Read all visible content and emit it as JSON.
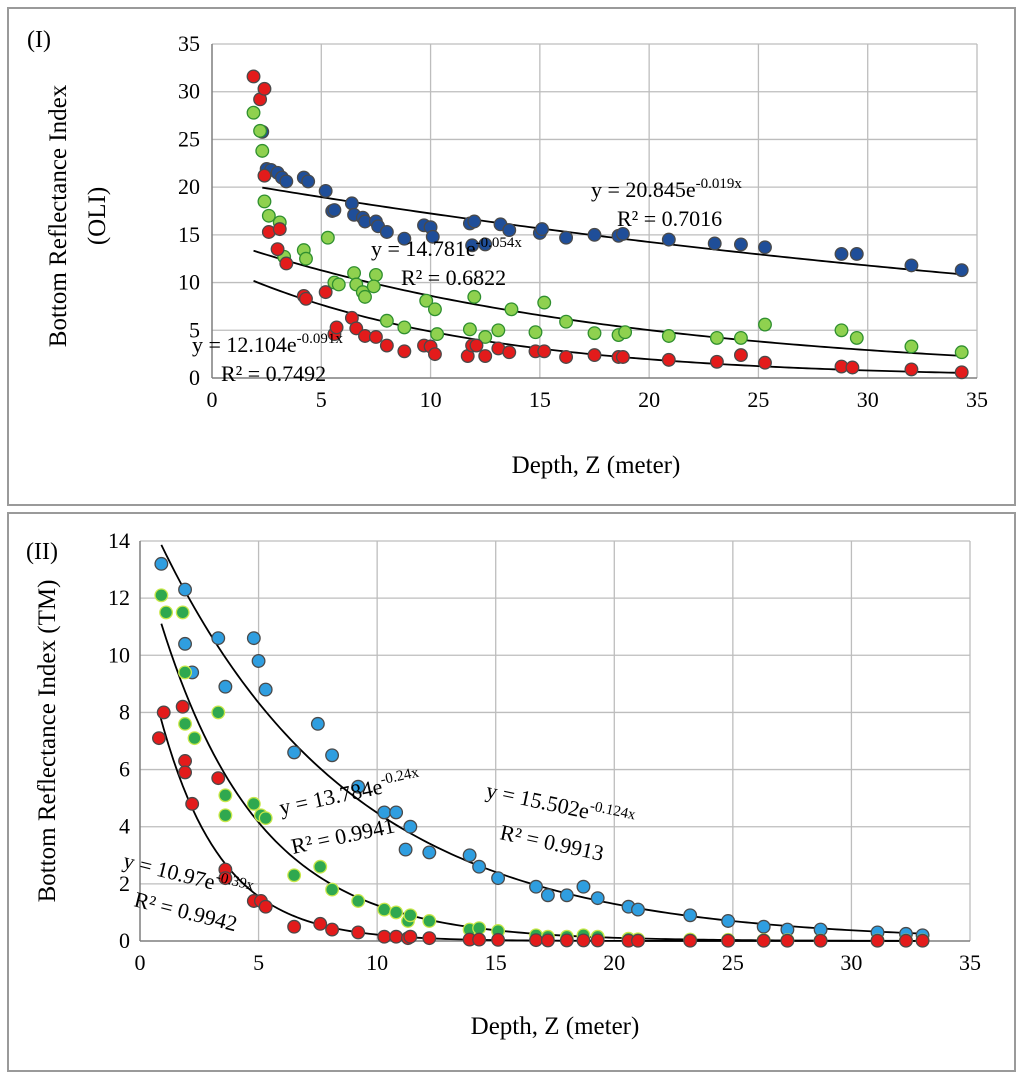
{
  "chart_data": [
    {
      "type": "scatter",
      "panel_label": "(I)",
      "xlabel": "Depth, Z (meter)",
      "ylabel": [
        "Bottom Reflectance Index",
        "(OLI)"
      ],
      "xlim": [
        0,
        35
      ],
      "ylim": [
        0,
        35
      ],
      "xticks": [
        "0",
        "5",
        "10",
        "15",
        "20",
        "25",
        "30",
        "35"
      ],
      "yticks": [
        "0",
        "5",
        "10",
        "15",
        "20",
        "25",
        "30",
        "35"
      ],
      "grid": true,
      "series": [
        {
          "name": "blue",
          "color": "#1f4e99",
          "fit": {
            "a": 20.845,
            "b": -0.019,
            "text": "y = 20.845e",
            "exp": "-0.019x",
            "r2": "R² = 0.7016"
          },
          "points": [
            [
              2.3,
              25.8
            ],
            [
              2.5,
              21.9
            ],
            [
              2.7,
              21.8
            ],
            [
              3.0,
              21.5
            ],
            [
              3.2,
              21.0
            ],
            [
              3.4,
              20.6
            ],
            [
              4.2,
              21.0
            ],
            [
              4.4,
              20.6
            ],
            [
              5.2,
              19.6
            ],
            [
              5.5,
              17.5
            ],
            [
              5.6,
              17.6
            ],
            [
              6.4,
              18.3
            ],
            [
              6.5,
              17.1
            ],
            [
              6.9,
              16.8
            ],
            [
              7.0,
              16.4
            ],
            [
              7.5,
              16.4
            ],
            [
              7.6,
              15.9
            ],
            [
              8.0,
              15.3
            ],
            [
              8.8,
              14.6
            ],
            [
              9.7,
              16.0
            ],
            [
              10.0,
              15.8
            ],
            [
              10.1,
              14.8
            ],
            [
              11.8,
              16.2
            ],
            [
              12.0,
              16.4
            ],
            [
              11.9,
              13.9
            ],
            [
              12.5,
              14.0
            ],
            [
              13.2,
              16.1
            ],
            [
              13.6,
              15.5
            ],
            [
              15.0,
              15.2
            ],
            [
              15.1,
              15.6
            ],
            [
              16.2,
              14.7
            ],
            [
              17.5,
              15.0
            ],
            [
              18.6,
              14.9
            ],
            [
              18.8,
              15.1
            ],
            [
              20.9,
              14.5
            ],
            [
              23.0,
              14.1
            ],
            [
              24.2,
              14.0
            ],
            [
              25.3,
              13.7
            ],
            [
              28.8,
              13.0
            ],
            [
              29.5,
              13.0
            ],
            [
              32.0,
              11.8
            ],
            [
              34.3,
              11.3
            ]
          ]
        },
        {
          "name": "green",
          "color": "#8fd14f",
          "fit": {
            "a": 14.781,
            "b": -0.054,
            "text": "y = 14.781e",
            "exp": "-0.054x",
            "r2": "R² = 0.6822"
          },
          "points": [
            [
              1.9,
              27.8
            ],
            [
              2.2,
              25.9
            ],
            [
              2.3,
              23.8
            ],
            [
              2.4,
              18.5
            ],
            [
              2.6,
              17.0
            ],
            [
              3.1,
              16.3
            ],
            [
              3.3,
              12.7
            ],
            [
              4.2,
              13.4
            ],
            [
              4.3,
              12.5
            ],
            [
              5.3,
              14.7
            ],
            [
              5.6,
              10.0
            ],
            [
              5.8,
              9.8
            ],
            [
              6.5,
              11.0
            ],
            [
              6.6,
              9.8
            ],
            [
              6.9,
              9.0
            ],
            [
              7.0,
              8.5
            ],
            [
              7.5,
              10.8
            ],
            [
              7.4,
              9.6
            ],
            [
              8.0,
              6.0
            ],
            [
              8.8,
              5.3
            ],
            [
              9.8,
              8.1
            ],
            [
              10.2,
              7.2
            ],
            [
              10.3,
              4.6
            ],
            [
              11.8,
              5.1
            ],
            [
              12.0,
              8.5
            ],
            [
              12.5,
              4.3
            ],
            [
              13.1,
              5.0
            ],
            [
              13.7,
              7.2
            ],
            [
              14.8,
              4.8
            ],
            [
              15.2,
              7.9
            ],
            [
              16.2,
              5.9
            ],
            [
              17.5,
              4.7
            ],
            [
              18.6,
              4.5
            ],
            [
              18.9,
              4.8
            ],
            [
              20.9,
              4.4
            ],
            [
              23.1,
              4.2
            ],
            [
              24.2,
              4.2
            ],
            [
              25.3,
              5.6
            ],
            [
              28.8,
              5.0
            ],
            [
              29.5,
              4.2
            ],
            [
              32.0,
              3.3
            ],
            [
              34.3,
              2.7
            ]
          ]
        },
        {
          "name": "red",
          "color": "#e31b1b",
          "fit": {
            "a": 12.104,
            "b": -0.091,
            "text": "y = 12.104e",
            "exp": "-0.091x",
            "r2": "R² = 0.7492"
          },
          "points": [
            [
              1.9,
              31.6
            ],
            [
              2.2,
              29.2
            ],
            [
              2.4,
              30.3
            ],
            [
              2.4,
              21.2
            ],
            [
              2.6,
              15.3
            ],
            [
              3.0,
              13.5
            ],
            [
              3.1,
              15.6
            ],
            [
              3.4,
              12.0
            ],
            [
              4.2,
              8.6
            ],
            [
              4.3,
              8.3
            ],
            [
              5.2,
              9.0
            ],
            [
              5.6,
              4.6
            ],
            [
              5.7,
              5.3
            ],
            [
              6.4,
              6.3
            ],
            [
              6.6,
              5.2
            ],
            [
              7.0,
              4.4
            ],
            [
              7.5,
              4.3
            ],
            [
              8.0,
              3.4
            ],
            [
              8.8,
              2.8
            ],
            [
              9.7,
              3.4
            ],
            [
              10.0,
              3.3
            ],
            [
              10.2,
              2.5
            ],
            [
              11.7,
              2.3
            ],
            [
              11.9,
              3.4
            ],
            [
              12.1,
              3.4
            ],
            [
              12.5,
              2.3
            ],
            [
              13.1,
              3.1
            ],
            [
              13.6,
              2.7
            ],
            [
              14.8,
              2.8
            ],
            [
              15.2,
              2.8
            ],
            [
              16.2,
              2.2
            ],
            [
              17.5,
              2.4
            ],
            [
              18.6,
              2.2
            ],
            [
              18.8,
              2.2
            ],
            [
              20.9,
              1.9
            ],
            [
              23.1,
              1.7
            ],
            [
              24.2,
              2.4
            ],
            [
              25.3,
              1.6
            ],
            [
              28.8,
              1.2
            ],
            [
              29.3,
              1.1
            ],
            [
              32.0,
              0.9
            ],
            [
              34.3,
              0.6
            ]
          ]
        }
      ]
    },
    {
      "type": "scatter",
      "panel_label": "(II)",
      "xlabel": "Depth, Z (meter)",
      "ylabel": [
        "Bottom Reflectance Index (TM)"
      ],
      "xlim": [
        0,
        35
      ],
      "ylim": [
        0,
        14
      ],
      "xticks": [
        "0",
        "5",
        "10",
        "15",
        "20",
        "25",
        "30",
        "35"
      ],
      "yticks": [
        "0",
        "2",
        "4",
        "6",
        "8",
        "10",
        "12",
        "14"
      ],
      "grid": true,
      "series": [
        {
          "name": "light-blue",
          "color": "#2f9ee0",
          "fit": {
            "a": 15.502,
            "b": -0.124,
            "text": "y = 15.502e",
            "exp": "-0.124x",
            "r2": "R² = 0.9913"
          },
          "points": [
            [
              0.9,
              13.2
            ],
            [
              1.9,
              12.3
            ],
            [
              1.9,
              10.4
            ],
            [
              2.2,
              9.4
            ],
            [
              3.3,
              10.6
            ],
            [
              3.6,
              8.9
            ],
            [
              4.8,
              10.6
            ],
            [
              5.0,
              9.8
            ],
            [
              5.3,
              8.8
            ],
            [
              6.5,
              6.6
            ],
            [
              7.5,
              7.6
            ],
            [
              8.1,
              6.5
            ],
            [
              9.2,
              5.4
            ],
            [
              10.3,
              4.5
            ],
            [
              10.8,
              4.5
            ],
            [
              11.2,
              3.2
            ],
            [
              11.4,
              4.0
            ],
            [
              12.2,
              3.1
            ],
            [
              13.9,
              3.0
            ],
            [
              14.3,
              2.6
            ],
            [
              15.1,
              2.2
            ],
            [
              16.7,
              1.9
            ],
            [
              17.2,
              1.6
            ],
            [
              18.0,
              1.6
            ],
            [
              18.7,
              1.9
            ],
            [
              19.3,
              1.5
            ],
            [
              20.6,
              1.2
            ],
            [
              21.0,
              1.1
            ],
            [
              23.2,
              0.9
            ],
            [
              24.8,
              0.7
            ],
            [
              26.3,
              0.5
            ],
            [
              27.3,
              0.4
            ],
            [
              28.7,
              0.4
            ],
            [
              31.1,
              0.3
            ],
            [
              32.3,
              0.25
            ],
            [
              33.0,
              0.2
            ]
          ]
        },
        {
          "name": "green",
          "color": "#2fa84f",
          "fit": {
            "a": 13.784,
            "b": -0.24,
            "text": "y = 13.784e",
            "exp": "-0.24x",
            "r2": "R² = 0.9941"
          },
          "points": [
            [
              0.9,
              12.1
            ],
            [
              1.1,
              11.5
            ],
            [
              1.8,
              11.5
            ],
            [
              1.9,
              9.4
            ],
            [
              1.9,
              7.6
            ],
            [
              2.3,
              7.1
            ],
            [
              3.3,
              8.0
            ],
            [
              3.6,
              5.1
            ],
            [
              3.6,
              4.4
            ],
            [
              4.8,
              4.8
            ],
            [
              5.1,
              4.4
            ],
            [
              5.3,
              4.3
            ],
            [
              6.5,
              2.3
            ],
            [
              7.6,
              2.6
            ],
            [
              8.1,
              1.8
            ],
            [
              9.2,
              1.4
            ],
            [
              10.3,
              1.1
            ],
            [
              10.8,
              1.0
            ],
            [
              11.3,
              0.7
            ],
            [
              11.4,
              0.9
            ],
            [
              12.2,
              0.7
            ],
            [
              13.9,
              0.4
            ],
            [
              14.3,
              0.45
            ],
            [
              15.1,
              0.35
            ],
            [
              16.7,
              0.2
            ],
            [
              17.2,
              0.15
            ],
            [
              18.0,
              0.15
            ],
            [
              18.7,
              0.2
            ],
            [
              19.3,
              0.15
            ],
            [
              20.6,
              0.08
            ],
            [
              21.0,
              0.06
            ],
            [
              23.2,
              0.05
            ],
            [
              24.8,
              0.04
            ],
            [
              26.3,
              0.03
            ],
            [
              27.3,
              0.03
            ],
            [
              28.7,
              0.02
            ],
            [
              31.1,
              0.02
            ],
            [
              32.3,
              0.02
            ],
            [
              33.0,
              0.02
            ]
          ]
        },
        {
          "name": "red",
          "color": "#e31b1b",
          "fit": {
            "a": 10.97,
            "b": -0.39,
            "text": "y = 10.97e",
            "exp": "-0.39x",
            "r2": "R² = 0.9942"
          },
          "points": [
            [
              0.8,
              7.1
            ],
            [
              1.0,
              8.0
            ],
            [
              1.8,
              8.2
            ],
            [
              1.9,
              6.3
            ],
            [
              1.9,
              5.9
            ],
            [
              2.2,
              4.8
            ],
            [
              3.3,
              5.7
            ],
            [
              3.6,
              2.5
            ],
            [
              3.6,
              2.2
            ],
            [
              4.8,
              1.4
            ],
            [
              5.1,
              1.4
            ],
            [
              5.3,
              1.2
            ],
            [
              6.5,
              0.5
            ],
            [
              7.6,
              0.6
            ],
            [
              8.1,
              0.4
            ],
            [
              9.2,
              0.3
            ],
            [
              10.3,
              0.15
            ],
            [
              10.8,
              0.15
            ],
            [
              11.3,
              0.1
            ],
            [
              11.4,
              0.15
            ],
            [
              12.2,
              0.1
            ],
            [
              13.9,
              0.05
            ],
            [
              14.3,
              0.05
            ],
            [
              15.1,
              0.04
            ],
            [
              16.7,
              0.03
            ],
            [
              17.2,
              0.02
            ],
            [
              18.0,
              0.02
            ],
            [
              18.7,
              0.02
            ],
            [
              19.3,
              0.02
            ],
            [
              20.6,
              0.01
            ],
            [
              21.0,
              0.01
            ],
            [
              23.2,
              0.01
            ],
            [
              24.8,
              0.01
            ],
            [
              26.3,
              0.01
            ],
            [
              27.3,
              0.01
            ],
            [
              28.7,
              0.01
            ],
            [
              31.1,
              0.01
            ],
            [
              32.3,
              0.01
            ],
            [
              33.0,
              0.01
            ]
          ]
        }
      ]
    }
  ]
}
